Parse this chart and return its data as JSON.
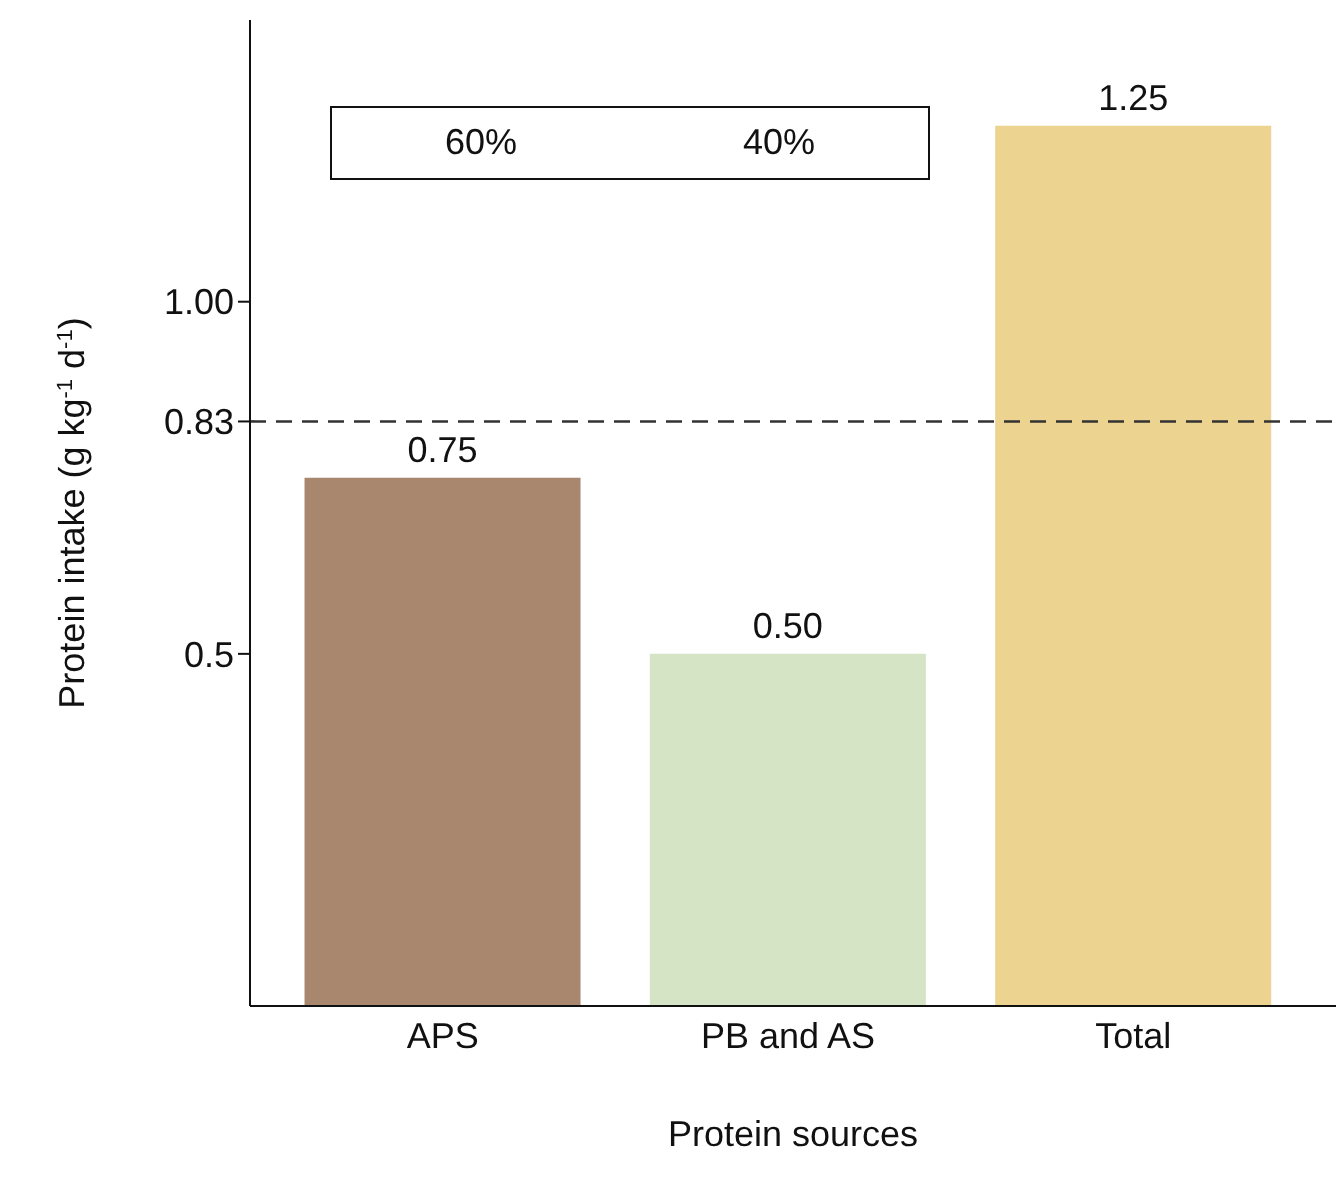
{
  "chart_data": {
    "type": "bar",
    "xlabel": "Protein sources",
    "ylabel": "Protein intake (g kg$^{-1}$ d$^{-1}$)",
    "categories": [
      "APS",
      "PB and AS",
      "Total"
    ],
    "values": [
      0.75,
      0.5,
      1.25
    ],
    "colors": [
      "#a8876e",
      "#d5e4c4",
      "#ecd38f"
    ],
    "value_labels": [
      "0.75",
      "0.50",
      "1.25"
    ],
    "ylim": [
      0,
      1.4
    ],
    "yticks": [
      0.5,
      0.83,
      {
        "value": 1,
        "label": "1.00"
      }
    ],
    "ref_lines": [
      {
        "axis": "y",
        "value": 0.83,
        "color": "#333333",
        "line_style": "dashed"
      }
    ],
    "annotations": [
      "60%",
      "40%"
    ],
    "grid": false
  }
}
